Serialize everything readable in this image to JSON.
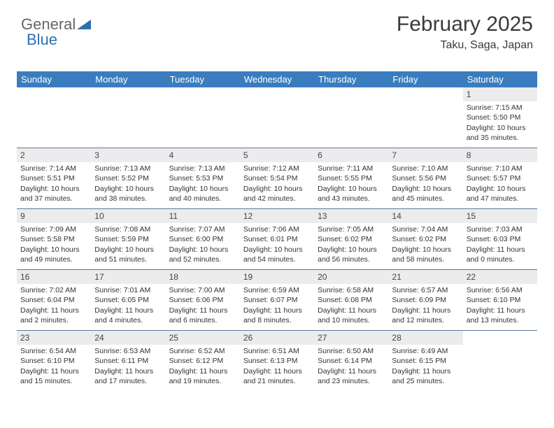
{
  "brand": {
    "part1": "General",
    "part2": "Blue"
  },
  "title": "February 2025",
  "location": "Taku, Saga, Japan",
  "colors": {
    "header_bg": "#3a7dbf",
    "header_text": "#ffffff",
    "daynum_bg": "#ececec",
    "border": "#5a7a9a",
    "brand_blue": "#2e6fb4"
  },
  "dayNames": [
    "Sunday",
    "Monday",
    "Tuesday",
    "Wednesday",
    "Thursday",
    "Friday",
    "Saturday"
  ],
  "weeks": [
    [
      null,
      null,
      null,
      null,
      null,
      null,
      {
        "n": "1",
        "sr": "Sunrise: 7:15 AM",
        "ss": "Sunset: 5:50 PM",
        "dl1": "Daylight: 10 hours",
        "dl2": "and 35 minutes."
      }
    ],
    [
      {
        "n": "2",
        "sr": "Sunrise: 7:14 AM",
        "ss": "Sunset: 5:51 PM",
        "dl1": "Daylight: 10 hours",
        "dl2": "and 37 minutes."
      },
      {
        "n": "3",
        "sr": "Sunrise: 7:13 AM",
        "ss": "Sunset: 5:52 PM",
        "dl1": "Daylight: 10 hours",
        "dl2": "and 38 minutes."
      },
      {
        "n": "4",
        "sr": "Sunrise: 7:13 AM",
        "ss": "Sunset: 5:53 PM",
        "dl1": "Daylight: 10 hours",
        "dl2": "and 40 minutes."
      },
      {
        "n": "5",
        "sr": "Sunrise: 7:12 AM",
        "ss": "Sunset: 5:54 PM",
        "dl1": "Daylight: 10 hours",
        "dl2": "and 42 minutes."
      },
      {
        "n": "6",
        "sr": "Sunrise: 7:11 AM",
        "ss": "Sunset: 5:55 PM",
        "dl1": "Daylight: 10 hours",
        "dl2": "and 43 minutes."
      },
      {
        "n": "7",
        "sr": "Sunrise: 7:10 AM",
        "ss": "Sunset: 5:56 PM",
        "dl1": "Daylight: 10 hours",
        "dl2": "and 45 minutes."
      },
      {
        "n": "8",
        "sr": "Sunrise: 7:10 AM",
        "ss": "Sunset: 5:57 PM",
        "dl1": "Daylight: 10 hours",
        "dl2": "and 47 minutes."
      }
    ],
    [
      {
        "n": "9",
        "sr": "Sunrise: 7:09 AM",
        "ss": "Sunset: 5:58 PM",
        "dl1": "Daylight: 10 hours",
        "dl2": "and 49 minutes."
      },
      {
        "n": "10",
        "sr": "Sunrise: 7:08 AM",
        "ss": "Sunset: 5:59 PM",
        "dl1": "Daylight: 10 hours",
        "dl2": "and 51 minutes."
      },
      {
        "n": "11",
        "sr": "Sunrise: 7:07 AM",
        "ss": "Sunset: 6:00 PM",
        "dl1": "Daylight: 10 hours",
        "dl2": "and 52 minutes."
      },
      {
        "n": "12",
        "sr": "Sunrise: 7:06 AM",
        "ss": "Sunset: 6:01 PM",
        "dl1": "Daylight: 10 hours",
        "dl2": "and 54 minutes."
      },
      {
        "n": "13",
        "sr": "Sunrise: 7:05 AM",
        "ss": "Sunset: 6:02 PM",
        "dl1": "Daylight: 10 hours",
        "dl2": "and 56 minutes."
      },
      {
        "n": "14",
        "sr": "Sunrise: 7:04 AM",
        "ss": "Sunset: 6:02 PM",
        "dl1": "Daylight: 10 hours",
        "dl2": "and 58 minutes."
      },
      {
        "n": "15",
        "sr": "Sunrise: 7:03 AM",
        "ss": "Sunset: 6:03 PM",
        "dl1": "Daylight: 11 hours",
        "dl2": "and 0 minutes."
      }
    ],
    [
      {
        "n": "16",
        "sr": "Sunrise: 7:02 AM",
        "ss": "Sunset: 6:04 PM",
        "dl1": "Daylight: 11 hours",
        "dl2": "and 2 minutes."
      },
      {
        "n": "17",
        "sr": "Sunrise: 7:01 AM",
        "ss": "Sunset: 6:05 PM",
        "dl1": "Daylight: 11 hours",
        "dl2": "and 4 minutes."
      },
      {
        "n": "18",
        "sr": "Sunrise: 7:00 AM",
        "ss": "Sunset: 6:06 PM",
        "dl1": "Daylight: 11 hours",
        "dl2": "and 6 minutes."
      },
      {
        "n": "19",
        "sr": "Sunrise: 6:59 AM",
        "ss": "Sunset: 6:07 PM",
        "dl1": "Daylight: 11 hours",
        "dl2": "and 8 minutes."
      },
      {
        "n": "20",
        "sr": "Sunrise: 6:58 AM",
        "ss": "Sunset: 6:08 PM",
        "dl1": "Daylight: 11 hours",
        "dl2": "and 10 minutes."
      },
      {
        "n": "21",
        "sr": "Sunrise: 6:57 AM",
        "ss": "Sunset: 6:09 PM",
        "dl1": "Daylight: 11 hours",
        "dl2": "and 12 minutes."
      },
      {
        "n": "22",
        "sr": "Sunrise: 6:56 AM",
        "ss": "Sunset: 6:10 PM",
        "dl1": "Daylight: 11 hours",
        "dl2": "and 13 minutes."
      }
    ],
    [
      {
        "n": "23",
        "sr": "Sunrise: 6:54 AM",
        "ss": "Sunset: 6:10 PM",
        "dl1": "Daylight: 11 hours",
        "dl2": "and 15 minutes."
      },
      {
        "n": "24",
        "sr": "Sunrise: 6:53 AM",
        "ss": "Sunset: 6:11 PM",
        "dl1": "Daylight: 11 hours",
        "dl2": "and 17 minutes."
      },
      {
        "n": "25",
        "sr": "Sunrise: 6:52 AM",
        "ss": "Sunset: 6:12 PM",
        "dl1": "Daylight: 11 hours",
        "dl2": "and 19 minutes."
      },
      {
        "n": "26",
        "sr": "Sunrise: 6:51 AM",
        "ss": "Sunset: 6:13 PM",
        "dl1": "Daylight: 11 hours",
        "dl2": "and 21 minutes."
      },
      {
        "n": "27",
        "sr": "Sunrise: 6:50 AM",
        "ss": "Sunset: 6:14 PM",
        "dl1": "Daylight: 11 hours",
        "dl2": "and 23 minutes."
      },
      {
        "n": "28",
        "sr": "Sunrise: 6:49 AM",
        "ss": "Sunset: 6:15 PM",
        "dl1": "Daylight: 11 hours",
        "dl2": "and 25 minutes."
      },
      null
    ]
  ]
}
